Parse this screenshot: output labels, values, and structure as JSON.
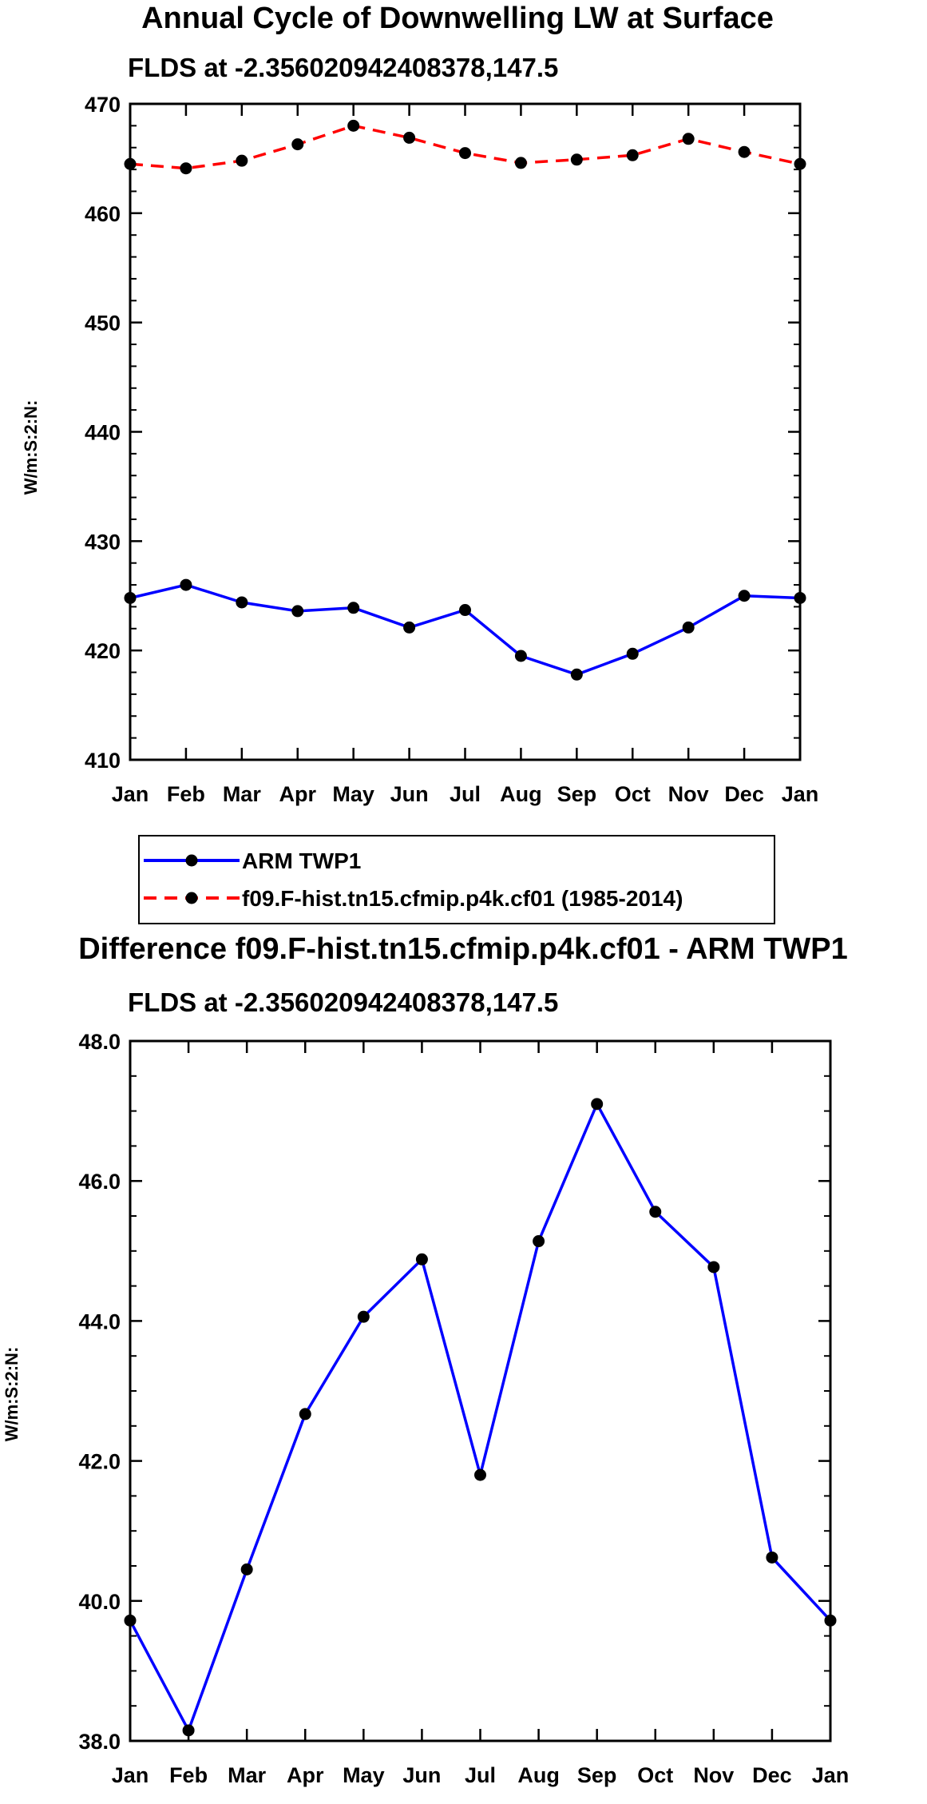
{
  "chart_data": [
    {
      "type": "line",
      "title": "Annual Cycle of Downwelling LW at Surface",
      "subtitle": "FLDS at -2.356020942408378,147.5",
      "xlabel": "",
      "ylabel": "W/m:S:2:N:",
      "categories": [
        "Jan",
        "Feb",
        "Mar",
        "Apr",
        "May",
        "Jun",
        "Jul",
        "Aug",
        "Sep",
        "Oct",
        "Nov",
        "Dec",
        "Jan"
      ],
      "ylim": [
        410,
        470
      ],
      "yticks": [
        410,
        420,
        430,
        440,
        450,
        460,
        470
      ],
      "ytick_labels": [
        "410",
        "420",
        "430",
        "440",
        "450",
        "460",
        "470"
      ],
      "series": [
        {
          "name": "ARM TWP1",
          "color": "#0000ff",
          "dash": "solid",
          "values": [
            424.8,
            426.0,
            424.4,
            423.6,
            423.9,
            422.1,
            423.7,
            419.5,
            417.8,
            419.7,
            422.1,
            425.0,
            424.8
          ]
        },
        {
          "name": "f09.F-hist.tn15.cfmip.p4k.cf01 (1985-2014)",
          "color": "#ff0000",
          "dash": "dashed",
          "values": [
            464.5,
            464.1,
            464.8,
            466.3,
            468.0,
            466.9,
            465.5,
            464.6,
            464.9,
            465.3,
            466.8,
            465.6,
            464.5
          ]
        }
      ],
      "legend": {
        "position": "bottom-left",
        "entries": [
          "ARM TWP1",
          "f09.F-hist.tn15.cfmip.p4k.cf01 (1985-2014)"
        ]
      }
    },
    {
      "type": "line",
      "title": "Difference f09.F-hist.tn15.cfmip.p4k.cf01 - ARM TWP1",
      "subtitle": "FLDS at -2.356020942408378,147.5",
      "xlabel": "",
      "ylabel": "W/m:S:2:N:",
      "categories": [
        "Jan",
        "Feb",
        "Mar",
        "Apr",
        "May",
        "Jun",
        "Jul",
        "Aug",
        "Sep",
        "Oct",
        "Nov",
        "Dec",
        "Jan"
      ],
      "ylim": [
        38.0,
        48.0
      ],
      "yticks": [
        38.0,
        40.0,
        42.0,
        44.0,
        46.0,
        48.0
      ],
      "ytick_labels": [
        "38.0",
        "40.0",
        "42.0",
        "44.0",
        "46.0",
        "48.0"
      ],
      "series": [
        {
          "name": "Difference",
          "color": "#0000ff",
          "dash": "solid",
          "values": [
            39.72,
            38.15,
            40.45,
            42.67,
            44.06,
            44.88,
            41.8,
            45.14,
            47.1,
            45.56,
            44.77,
            40.62,
            39.72
          ]
        }
      ]
    }
  ]
}
